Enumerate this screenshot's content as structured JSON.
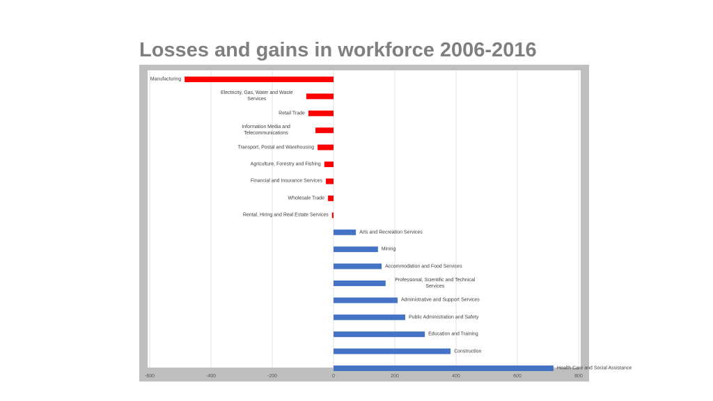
{
  "chart_data": {
    "type": "bar",
    "orientation": "horizontal",
    "title": "Losses and gains in workforce 2006-2016",
    "categories": [
      "Manufacturing",
      "Electricity, Gas, Water and Waste Services",
      "Retail Trade",
      "Information Media and Telecommunications",
      "Transport, Postal and Warehousing",
      "Agriculture, Forestry and Fishing",
      "Financial and Insurance Services",
      "Wholesale Trade",
      "Rental, Hiring and Real Estate Services",
      "Arts and Recreation Services",
      "Mining",
      "Accommodation and Food Services",
      "Professional, Scientific and Technical Services",
      "Administrative and Support Services",
      "Public Administration and Safety",
      "Education and Training",
      "Construction",
      "Health Care and Social Assistance"
    ],
    "values": [
      -486,
      -89,
      -82,
      -59,
      -52,
      -30,
      -25,
      -18,
      -5,
      73,
      145,
      157,
      170,
      209,
      234,
      298,
      382,
      718
    ],
    "color": "#4472c4",
    "negative_color": "#ff0000",
    "xlim": [
      -600,
      800
    ],
    "xticks": [
      -600,
      -400,
      -200,
      0,
      200,
      400,
      600,
      800
    ],
    "grid": true
  }
}
